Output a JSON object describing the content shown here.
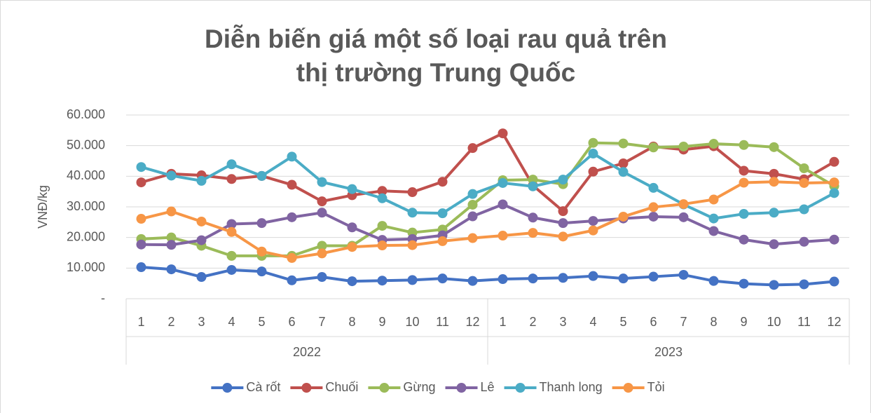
{
  "chart_data": {
    "type": "line",
    "title": [
      "Diễn biến giá một số loại rau quả  trên",
      "thị trường Trung Quốc"
    ],
    "ylabel": "VNĐ/kg",
    "categories": [
      "1",
      "2",
      "3",
      "4",
      "5",
      "6",
      "7",
      "8",
      "9",
      "10",
      "11",
      "12",
      "1",
      "2",
      "3",
      "4",
      "5",
      "6",
      "7",
      "8",
      "9",
      "10",
      "11",
      "12"
    ],
    "category_groups": [
      "2022",
      "2023"
    ],
    "ylim": [
      0,
      60000
    ],
    "yticks": [
      {
        "value": 0,
        "label": "-"
      },
      {
        "value": 10000,
        "label": "10.000"
      },
      {
        "value": 20000,
        "label": "20.000"
      },
      {
        "value": 30000,
        "label": "30.000"
      },
      {
        "value": 40000,
        "label": "40.000"
      },
      {
        "value": 50000,
        "label": "50.000"
      },
      {
        "value": 60000,
        "label": "60.000"
      }
    ],
    "grid": true,
    "legend": "bottom",
    "series": [
      {
        "name": "Cà rốt",
        "color": "#4472c4",
        "values": [
          10300,
          9600,
          7100,
          9400,
          8900,
          6000,
          7100,
          5700,
          5900,
          6100,
          6600,
          5800,
          6400,
          6600,
          6800,
          7400,
          6600,
          7200,
          7800,
          5800,
          4900,
          4500,
          4700,
          5600
        ]
      },
      {
        "name": "Chuối",
        "color": "#c0504d",
        "values": [
          38000,
          40800,
          40300,
          39100,
          40100,
          37200,
          31800,
          33800,
          35200,
          34800,
          38200,
          49200,
          54000,
          37000,
          28600,
          41500,
          44200,
          49700,
          48700,
          49800,
          41800,
          40800,
          39000,
          44700
        ]
      },
      {
        "name": "Gừng",
        "color": "#9bbb59",
        "values": [
          19500,
          20000,
          17300,
          14000,
          14000,
          14000,
          17300,
          17300,
          23800,
          21600,
          22600,
          30700,
          38700,
          38900,
          37400,
          50900,
          50700,
          49400,
          49700,
          50600,
          50200,
          49500,
          42600,
          36800
        ]
      },
      {
        "name": "Lê",
        "color": "#8064a2",
        "values": [
          17700,
          17600,
          19100,
          24400,
          24700,
          26600,
          28100,
          23300,
          19200,
          19500,
          20700,
          26900,
          30800,
          26500,
          24700,
          25400,
          26200,
          26800,
          26600,
          22100,
          19300,
          17800,
          18600,
          19300
        ]
      },
      {
        "name": "Thanh long",
        "color": "#4bacc6",
        "values": [
          43000,
          40200,
          38500,
          43900,
          40100,
          46400,
          38100,
          35800,
          32800,
          28100,
          27900,
          34200,
          37800,
          36700,
          38900,
          47400,
          41400,
          36200,
          30800,
          26200,
          27700,
          28100,
          29200,
          34500
        ]
      },
      {
        "name": "Tỏi",
        "color": "#f79646",
        "values": [
          26100,
          28500,
          25200,
          21800,
          15400,
          13300,
          14800,
          16900,
          17400,
          17500,
          18800,
          19800,
          20600,
          21500,
          20300,
          22300,
          26800,
          29900,
          30900,
          32400,
          37900,
          38200,
          37800,
          38000
        ]
      }
    ]
  }
}
